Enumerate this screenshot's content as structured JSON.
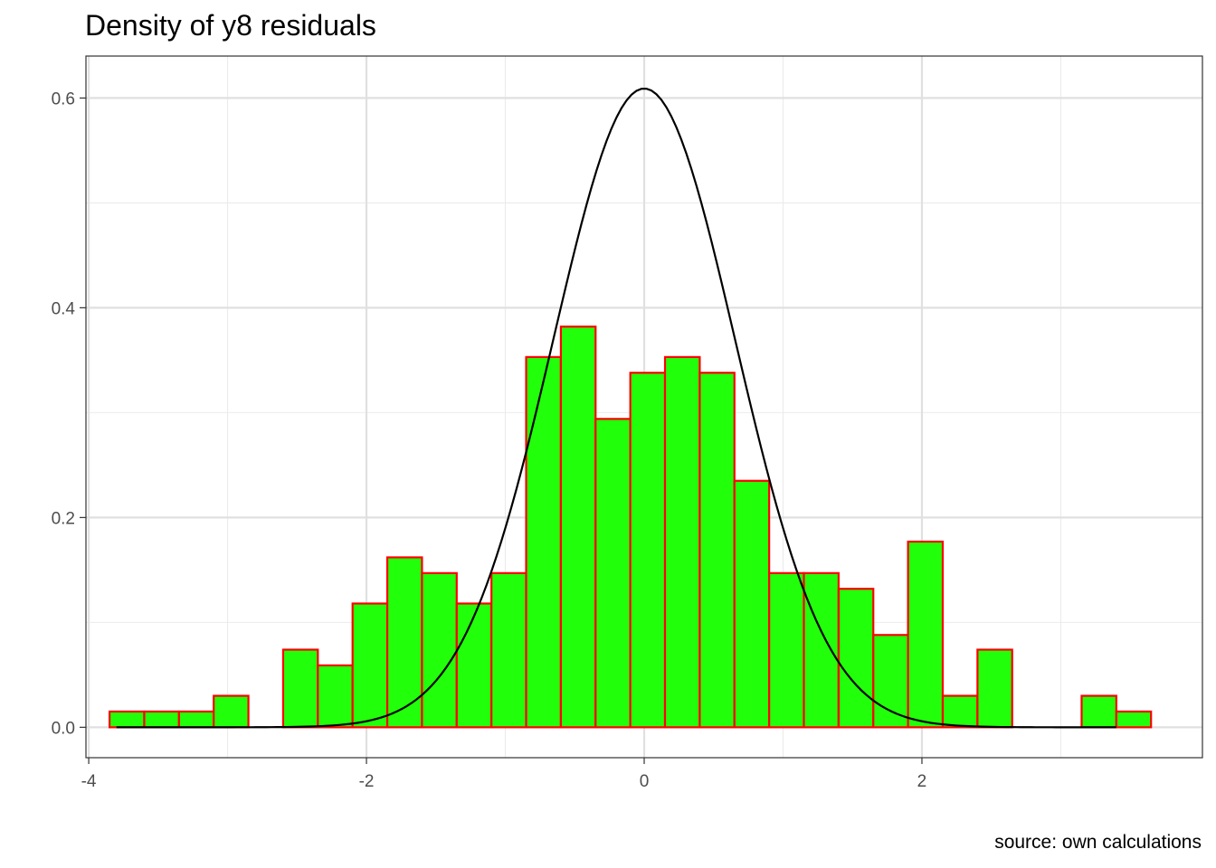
{
  "chart_data": {
    "type": "bar",
    "title": "Density of y8 residuals",
    "caption": "source: own calculations",
    "xlabel": "",
    "ylabel": "",
    "xlim": [
      -4.02,
      4.02
    ],
    "ylim": [
      -0.029,
      0.64
    ],
    "x_ticks": [
      -4,
      -2,
      0,
      2
    ],
    "x_tick_labels": [
      "-4",
      "-2",
      "0",
      "2"
    ],
    "y_ticks": [
      0.0,
      0.2,
      0.4,
      0.6
    ],
    "y_tick_labels": [
      "0.0",
      "0.2",
      "0.4",
      "0.6"
    ],
    "grid": true,
    "histogram": {
      "bin_width": 0.25,
      "bin_start": -3.85,
      "fill": "#22ff0a",
      "outline": "#ff0000",
      "density": [
        0.015,
        0.015,
        0.015,
        0.03,
        0.0,
        0.074,
        0.059,
        0.118,
        0.162,
        0.147,
        0.118,
        0.147,
        0.353,
        0.382,
        0.294,
        0.338,
        0.353,
        0.338,
        0.235,
        0.147,
        0.147,
        0.132,
        0.088,
        0.177,
        0.03,
        0.074,
        0.0,
        0.0,
        0.03,
        0.015
      ]
    },
    "normal_curve": {
      "color": "#000000",
      "mean": 0.0,
      "sd": 0.655,
      "x_range": [
        -3.8,
        3.4
      ]
    }
  }
}
